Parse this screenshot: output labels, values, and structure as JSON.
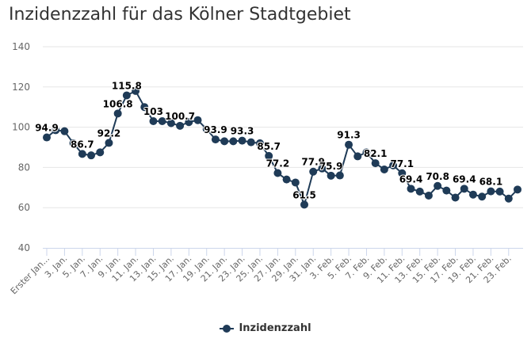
{
  "colors": {
    "series": "#1f3b57",
    "grid": "#e6e6e6",
    "axis": "#ccd6eb"
  },
  "chart_data": {
    "type": "line",
    "title": "Inzidenzzahl für das Kölner Stadtgebiet",
    "xlabel": "",
    "ylabel": "",
    "ylim": [
      40,
      140
    ],
    "yticks": [
      40,
      60,
      80,
      100,
      120,
      140
    ],
    "grid": true,
    "legend_position": "bottom-center",
    "x_tick_labels": [
      "Erster Jan...",
      "3. Jan.",
      "5. Jan.",
      "7. Jan.",
      "9. Jan.",
      "11. Jan.",
      "13. Jan.",
      "15. Jan.",
      "17. Jan.",
      "19. Jan.",
      "21. Jan.",
      "23. Jan.",
      "25. Jan.",
      "27. Jan.",
      "29. Jan.",
      "31. Jan.",
      "3. Feb.",
      "5. Feb.",
      "7. Feb.",
      "9. Feb.",
      "11. Feb.",
      "13. Feb.",
      "15. Feb.",
      "17. Feb.",
      "19. Feb.",
      "21. Feb.",
      "23. Feb."
    ],
    "x_tick_every": 2,
    "series": [
      {
        "name": "Inzidenzzahl",
        "values": [
          94.9,
          98.5,
          98,
          92,
          86.7,
          86,
          87.5,
          92.2,
          106.8,
          115.8,
          118,
          110,
          103,
          103,
          102,
          100.7,
          102.5,
          103.5,
          99,
          93.9,
          93,
          93,
          93.3,
          92.5,
          92,
          85.7,
          77.2,
          74,
          72.5,
          61.5,
          77.9,
          79.5,
          75.9,
          76,
          91.3,
          85.5,
          87.5,
          82.1,
          79,
          81,
          77.1,
          69.4,
          68,
          66,
          70.8,
          68.5,
          65,
          69.4,
          66.5,
          65.5,
          68.1,
          68,
          64.5,
          69
        ],
        "labeled_indices": [
          0,
          4,
          7,
          8,
          9,
          12,
          15,
          19,
          22,
          25,
          26,
          29,
          30,
          32,
          34,
          37,
          40,
          41,
          44,
          47,
          50
        ],
        "data_labels": [
          "94.9",
          "86.7",
          "92.2",
          "106.8",
          "115.8",
          "103",
          "100.7",
          "93.9",
          "93.3",
          "85.7",
          "77.2",
          "61.5",
          "77.9",
          "75.9",
          "91.3",
          "82.1",
          "77.1",
          "69.4",
          "70.8",
          "69.4",
          "68.1"
        ]
      }
    ]
  },
  "legend": {
    "items": [
      {
        "label": "Inzidenzzahl"
      }
    ]
  }
}
